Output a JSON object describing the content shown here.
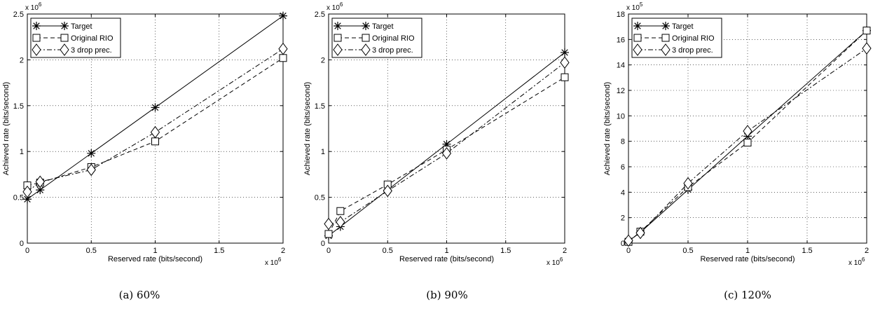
{
  "chart_data": [
    {
      "type": "line",
      "caption": "(a) 60%",
      "xlabel": "Reserved rate (bits/second)",
      "ylabel": "Achieved rate (bits/second)",
      "x_exponent": "x 10",
      "x_exponent_power": "6",
      "y_exponent": "x 10",
      "y_exponent_power": "6",
      "xlim": [
        0,
        2000000
      ],
      "ylim": [
        0,
        2500000
      ],
      "x_ticks": [
        0,
        500000,
        1000000,
        1500000,
        2000000
      ],
      "x_tick_labels": [
        "0",
        "0.5",
        "1",
        "1.5",
        "2"
      ],
      "y_ticks": [
        0,
        500000,
        1000000,
        1500000,
        2000000,
        2500000
      ],
      "y_tick_labels": [
        "0",
        "0.5",
        "1",
        "1.5",
        "2",
        "2.5"
      ],
      "grid": true,
      "legend_position": "top-left",
      "series": [
        {
          "name": "Target",
          "marker": "asterisk",
          "dash": "solid",
          "x": [
            0,
            100000,
            500000,
            1000000,
            2000000
          ],
          "y": [
            480000,
            580000,
            980000,
            1480000,
            2480000
          ]
        },
        {
          "name": "Original RIO",
          "marker": "square",
          "dash": "dashed",
          "x": [
            0,
            100000,
            500000,
            1000000,
            2000000
          ],
          "y": [
            630000,
            660000,
            830000,
            1110000,
            2020000
          ]
        },
        {
          "name": "3 drop prec.",
          "marker": "diamond",
          "dash": "dashdot",
          "x": [
            0,
            100000,
            500000,
            1000000,
            2000000
          ],
          "y": [
            560000,
            670000,
            800000,
            1210000,
            2120000
          ]
        }
      ]
    },
    {
      "type": "line",
      "caption": "(b) 90%",
      "xlabel": "Reserved rate (bits/second)",
      "ylabel": "Achieved rate (bits/second)",
      "x_exponent": "x 10",
      "x_exponent_power": "6",
      "y_exponent": "x 10",
      "y_exponent_power": "6",
      "xlim": [
        0,
        2000000
      ],
      "ylim": [
        0,
        2500000
      ],
      "x_ticks": [
        0,
        500000,
        1000000,
        1500000,
        2000000
      ],
      "x_tick_labels": [
        "0",
        "0.5",
        "1",
        "1.5",
        "2"
      ],
      "y_ticks": [
        0,
        500000,
        1000000,
        1500000,
        2000000,
        2500000
      ],
      "y_tick_labels": [
        "0",
        "0.5",
        "1",
        "1.5",
        "2",
        "2.5"
      ],
      "grid": true,
      "legend_position": "top-left",
      "series": [
        {
          "name": "Target",
          "marker": "asterisk",
          "dash": "solid",
          "x": [
            0,
            100000,
            500000,
            1000000,
            2000000
          ],
          "y": [
            80000,
            180000,
            580000,
            1080000,
            2080000
          ]
        },
        {
          "name": "Original RIO",
          "marker": "square",
          "dash": "dashed",
          "x": [
            0,
            100000,
            500000,
            1000000,
            2000000
          ],
          "y": [
            100000,
            350000,
            640000,
            1020000,
            1810000
          ]
        },
        {
          "name": "3 drop prec.",
          "marker": "diamond",
          "dash": "dashdot",
          "x": [
            0,
            100000,
            500000,
            1000000,
            2000000
          ],
          "y": [
            210000,
            230000,
            570000,
            980000,
            1970000
          ]
        }
      ]
    },
    {
      "type": "line",
      "caption": "(c) 120%",
      "xlabel": "Reserved rate (bits/second)",
      "ylabel": "Achieved rate (bits/second)",
      "x_exponent": "x 10",
      "x_exponent_power": "6",
      "y_exponent": "x 10",
      "y_exponent_power": "5",
      "xlim": [
        0,
        2000000
      ],
      "ylim": [
        0,
        1800000
      ],
      "x_ticks": [
        0,
        500000,
        1000000,
        1500000,
        2000000
      ],
      "x_tick_labels": [
        "0",
        "0.5",
        "1",
        "1.5",
        "2"
      ],
      "y_ticks": [
        0,
        200000,
        400000,
        600000,
        800000,
        1000000,
        1200000,
        1400000,
        1600000,
        1800000
      ],
      "y_tick_labels": [
        "0",
        "2",
        "4",
        "6",
        "8",
        "10",
        "12",
        "14",
        "16",
        "18"
      ],
      "grid": true,
      "legend_position": "top-left",
      "series": [
        {
          "name": "Target",
          "marker": "asterisk",
          "dash": "solid",
          "x": [
            0,
            100000,
            500000,
            1000000,
            2000000
          ],
          "y": [
            15000,
            85000,
            420000,
            840000,
            1670000
          ]
        },
        {
          "name": "Original RIO",
          "marker": "square",
          "dash": "dashed",
          "x": [
            0,
            100000,
            500000,
            1000000,
            2000000
          ],
          "y": [
            10000,
            90000,
            440000,
            790000,
            1670000
          ]
        },
        {
          "name": "3 drop prec.",
          "marker": "diamond",
          "dash": "dashdot",
          "x": [
            0,
            100000,
            500000,
            1000000,
            2000000
          ],
          "y": [
            20000,
            80000,
            470000,
            880000,
            1530000
          ]
        }
      ]
    }
  ]
}
